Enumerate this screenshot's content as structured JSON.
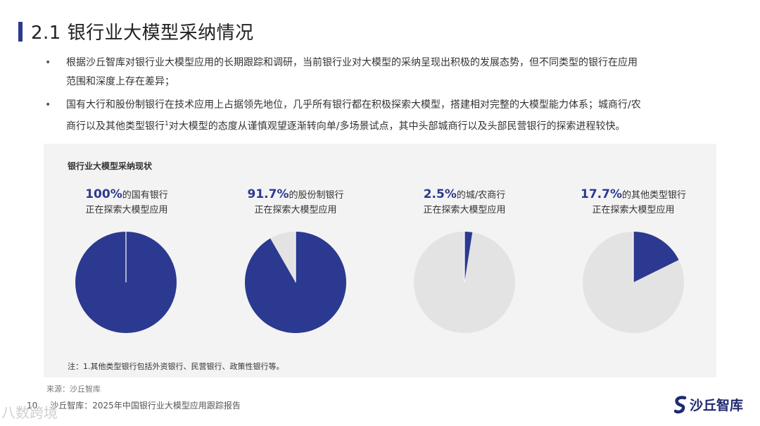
{
  "header": {
    "title": "2.1 银行业大模型采纳情况"
  },
  "bullets": [
    {
      "line1": "根据沙丘智库对银行业大模型应用的长期跟踪和调研，当前银行业对大模型的采纳呈现出积极的发展态势，但不同类型的银行在应用",
      "line2": "范围和深度上存在差异；"
    },
    {
      "line1": "国有大行和股份制银行在技术应用上占据领先地位，几乎所有银行都在积极探索大模型，搭建相对完整的大模型能力体系；城商行/农",
      "line2a": "商行以及其他类型银行",
      "sup": "1",
      "line2b": "对大模型的态度从谨慎观望逐渐转向单/多场景试点，其中头部城商行以及头部民营银行的探索进程较快。"
    }
  ],
  "chart_data": {
    "type": "pie",
    "title": "银行业大模型采纳现状",
    "colors": {
      "primary": "#2b3990",
      "rest": "#e3e3e3"
    },
    "pies": [
      {
        "pct_label": "100%",
        "label1": "的国有银行",
        "label2": "正在探索大模型应用",
        "value": 100
      },
      {
        "pct_label": "91.7%",
        "label1": "的股份制银行",
        "label2": "正在探索大模型应用",
        "value": 91.7
      },
      {
        "pct_label": "2.5%",
        "label1": "的城/农商行",
        "label2": "正在探索大模型应用",
        "value": 2.5
      },
      {
        "pct_label": "17.7%",
        "label1": "的其他类型银行",
        "label2": "正在探索大模型应用",
        "value": 17.7
      }
    ],
    "note": "注：1.其他类型银行包括外资银行、民营银行、政策性银行等。"
  },
  "source": "来源：沙丘智库",
  "footer": {
    "page": "10",
    "text": "沙丘智库：2025年中国银行业大模型应用跟踪报告"
  },
  "logo": {
    "name": "沙丘智库",
    "icon": "s-logo-icon"
  },
  "watermark": "八数跨境"
}
